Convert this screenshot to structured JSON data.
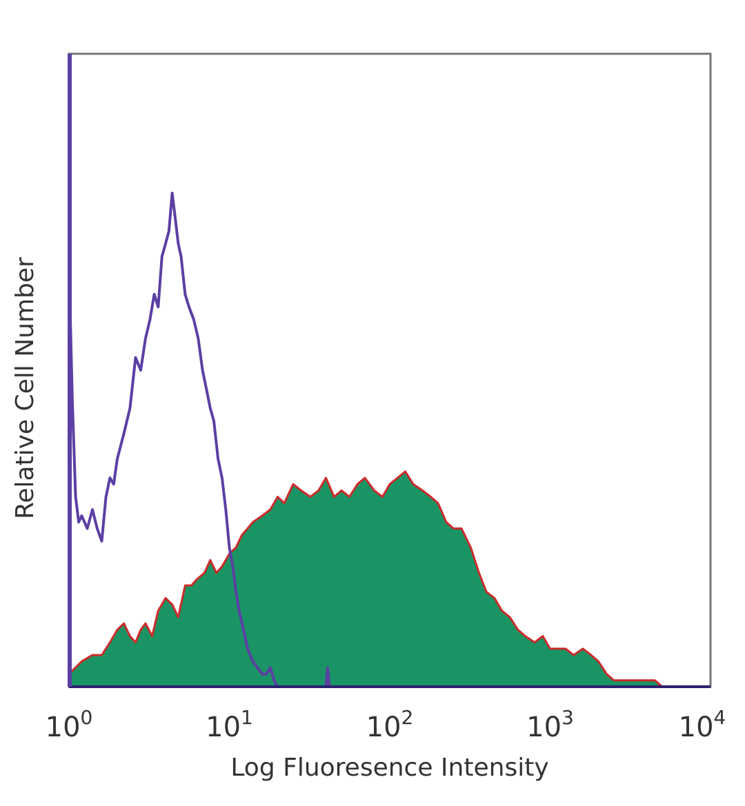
{
  "chart_data": {
    "type": "area",
    "xscale": "log",
    "xlim": [
      1,
      10000
    ],
    "ylim": [
      0,
      1
    ],
    "grid": false,
    "legend": "none",
    "xlabel": "Log Fluoresence Intensity",
    "ylabel": "Relative Cell Number",
    "ticks": [
      {
        "base": "10",
        "exp": "0",
        "value": 1
      },
      {
        "base": "10",
        "exp": "1",
        "value": 10
      },
      {
        "base": "10",
        "exp": "2",
        "value": 100
      },
      {
        "base": "10",
        "exp": "3",
        "value": 1000
      },
      {
        "base": "10",
        "exp": "4",
        "value": 10000
      }
    ],
    "series": [
      {
        "role": "isotype-control",
        "style": "line",
        "color": "#5b3fa3",
        "x": [
          1.02,
          1.05,
          1.1,
          1.15,
          1.2,
          1.3,
          1.4,
          1.5,
          1.6,
          1.7,
          1.8,
          1.9,
          2.0,
          2.2,
          2.4,
          2.6,
          2.8,
          3.0,
          3.2,
          3.4,
          3.6,
          3.8,
          4.0,
          4.2,
          4.4,
          4.6,
          4.8,
          5.0,
          5.3,
          5.6,
          6.0,
          6.4,
          6.8,
          7.2,
          7.6,
          8.0,
          8.5,
          9.0,
          9.5,
          10.0,
          10.5,
          11.0,
          11.5,
          12.0,
          12.5,
          13.0,
          14.0,
          15.0,
          16.0,
          17.0,
          18.0,
          19.0,
          20.0,
          30.0,
          40.0,
          41.0,
          42.0,
          50.0
        ],
        "y": [
          0.58,
          0.45,
          0.3,
          0.26,
          0.27,
          0.25,
          0.28,
          0.25,
          0.23,
          0.3,
          0.33,
          0.32,
          0.36,
          0.4,
          0.44,
          0.52,
          0.5,
          0.55,
          0.58,
          0.62,
          0.6,
          0.68,
          0.7,
          0.72,
          0.78,
          0.74,
          0.7,
          0.68,
          0.62,
          0.6,
          0.58,
          0.55,
          0.5,
          0.47,
          0.44,
          0.42,
          0.36,
          0.33,
          0.28,
          0.22,
          0.19,
          0.15,
          0.12,
          0.1,
          0.08,
          0.06,
          0.04,
          0.03,
          0.02,
          0.02,
          0.03,
          0.01,
          0.0,
          0.0,
          0.0,
          0.03,
          0.0,
          0.0
        ]
      },
      {
        "role": "stained",
        "style": "filled",
        "color": "#1a9464",
        "outline": "#cc2a2a",
        "x": [
          1.0,
          1.2,
          1.4,
          1.6,
          1.8,
          2.0,
          2.2,
          2.4,
          2.6,
          2.8,
          3.0,
          3.3,
          3.6,
          4.0,
          4.4,
          4.8,
          5.3,
          5.8,
          6.3,
          7.0,
          7.6,
          8.3,
          9.0,
          10.0,
          11.0,
          12.0,
          13.0,
          14.0,
          16.0,
          18.0,
          20.0,
          22.0,
          25.0,
          28.0,
          32.0,
          36.0,
          40.0,
          45.0,
          50.0,
          56.0,
          63.0,
          70.0,
          80.0,
          90.0,
          100.0,
          112.0,
          125.0,
          140.0,
          160.0,
          180.0,
          200.0,
          225.0,
          250.0,
          280.0,
          320.0,
          360.0,
          400.0,
          450.0,
          500.0,
          560.0,
          630.0,
          700.0,
          800.0,
          900.0,
          1000.0,
          1120.0,
          1250.0,
          1400.0,
          1600.0,
          1800.0,
          2000.0,
          2250.0,
          2500.0,
          2800.0,
          3200.0,
          3600.0,
          4000.0,
          4500.0,
          5000.0,
          6000.0,
          7000.0,
          8000.0,
          9000.0,
          10000.0
        ],
        "y": [
          0.02,
          0.04,
          0.05,
          0.05,
          0.07,
          0.09,
          0.1,
          0.08,
          0.07,
          0.09,
          0.1,
          0.08,
          0.12,
          0.14,
          0.13,
          0.11,
          0.16,
          0.16,
          0.17,
          0.18,
          0.2,
          0.18,
          0.19,
          0.21,
          0.22,
          0.24,
          0.25,
          0.26,
          0.27,
          0.28,
          0.3,
          0.29,
          0.32,
          0.31,
          0.3,
          0.31,
          0.33,
          0.3,
          0.31,
          0.3,
          0.32,
          0.33,
          0.31,
          0.3,
          0.32,
          0.33,
          0.34,
          0.32,
          0.31,
          0.3,
          0.29,
          0.26,
          0.25,
          0.25,
          0.22,
          0.18,
          0.15,
          0.14,
          0.12,
          0.11,
          0.09,
          0.08,
          0.07,
          0.08,
          0.06,
          0.06,
          0.06,
          0.05,
          0.06,
          0.05,
          0.04,
          0.02,
          0.01,
          0.01,
          0.01,
          0.01,
          0.01,
          0.01,
          0.0,
          0.0,
          0.0,
          0.0,
          0.0,
          0.0
        ]
      }
    ]
  }
}
